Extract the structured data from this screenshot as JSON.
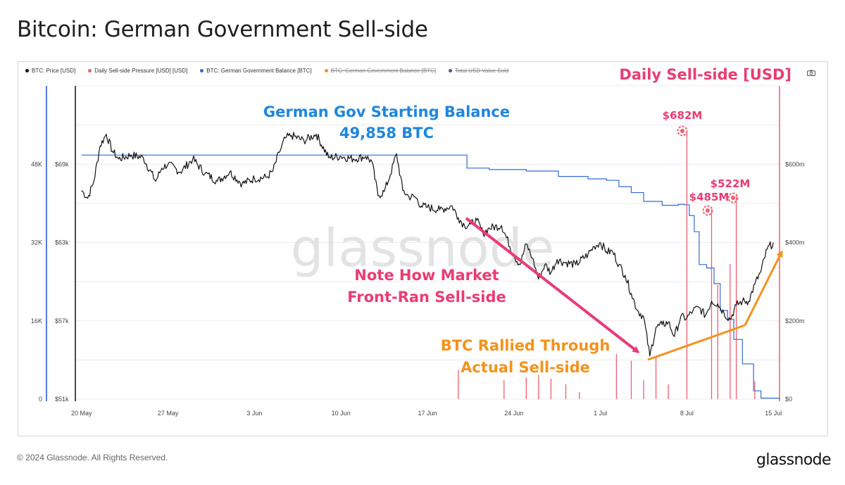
{
  "title": "Bitcoin: German Government Sell-side",
  "legend": [
    {
      "label": "BTC: Price [USD]",
      "color": "#111111",
      "active": true
    },
    {
      "label": "Daily Sell-side Pressure [USD] [USD]",
      "color": "#f45c6e",
      "active": true
    },
    {
      "label": "BTC: German Government Balance [BTC]",
      "color": "#2f6bdc",
      "active": true
    },
    {
      "label": "BTC: German Government Balance [BTC]",
      "color": "#f7931a",
      "active": false
    },
    {
      "label": "Total USD Value Sold",
      "color": "#4a5d8f",
      "active": false
    }
  ],
  "annotations": {
    "daily_sell_side": "Daily Sell-side [USD]",
    "starting_balance_line1": "German Gov Starting Balance",
    "starting_balance_line2": "49,858 BTC",
    "front_ran_line1": "Note How Market",
    "front_ran_line2": "Front-Ran Sell-side",
    "rallied_line1": "BTC Rallied Through",
    "rallied_line2": "Actual Sell-side",
    "peak_682": "$682M",
    "peak_485": "$485M",
    "peak_522": "$522M"
  },
  "watermark": "glassnode",
  "footer": "© 2024 Glassnode. All Rights Reserved.",
  "brand": "glassnode",
  "colors": {
    "price": "#111111",
    "balance": "#2f6bdc",
    "sellside": "#f45c6e",
    "pink": "#ea3c72",
    "blue": "#1d86e0",
    "orange": "#f5921b"
  },
  "chart_data": {
    "type": "line",
    "title": "Bitcoin: German Government Sell-side",
    "x_ticks": [
      "20 May",
      "27 May",
      "3 Jun",
      "10 Jun",
      "17 Jun",
      "24 Jun",
      "1 Jul",
      "8 Jul",
      "15 Jul"
    ],
    "x_range_days": [
      -0.5,
      56.5
    ],
    "axes": {
      "balance_btc": {
        "ticks": [
          "0",
          "16K",
          "32K",
          "48K"
        ],
        "range": [
          0,
          64000
        ]
      },
      "price_usd": {
        "ticks": [
          "$51k",
          "$57k",
          "$63k",
          "$69k"
        ],
        "range": [
          51000,
          75000
        ]
      },
      "sellside_usd": {
        "ticks": [
          "$0",
          "$200m",
          "$400m",
          "$600m"
        ],
        "range": [
          0,
          800
        ]
      }
    },
    "series": [
      {
        "name": "BTC: Price [USD]",
        "axis": "price_usd",
        "points": [
          [
            0.0,
            67000
          ],
          [
            0.5,
            66400
          ],
          [
            1.0,
            67700
          ],
          [
            1.5,
            70400
          ],
          [
            2.0,
            71300
          ],
          [
            2.5,
            70000
          ],
          [
            3.0,
            69400
          ],
          [
            4.0,
            69700
          ],
          [
            5.0,
            69500
          ],
          [
            6.0,
            67700
          ],
          [
            6.5,
            68700
          ],
          [
            7.0,
            69000
          ],
          [
            8.0,
            68400
          ],
          [
            9.0,
            69400
          ],
          [
            10.0,
            68300
          ],
          [
            11.0,
            67700
          ],
          [
            12.0,
            68400
          ],
          [
            13.0,
            67500
          ],
          [
            14.0,
            67900
          ],
          [
            15.0,
            68000
          ],
          [
            15.5,
            68500
          ],
          [
            16.0,
            69900
          ],
          [
            16.5,
            71000
          ],
          [
            17.0,
            71200
          ],
          [
            18.0,
            70800
          ],
          [
            19.0,
            71300
          ],
          [
            20.0,
            69500
          ],
          [
            21.0,
            69600
          ],
          [
            22.0,
            69400
          ],
          [
            23.0,
            69600
          ],
          [
            23.5,
            69200
          ],
          [
            24.0,
            66600
          ],
          [
            24.5,
            66900
          ],
          [
            25.0,
            68200
          ],
          [
            25.5,
            69800
          ],
          [
            26.0,
            67000
          ],
          [
            26.5,
            66500
          ],
          [
            27.0,
            66500
          ],
          [
            27.5,
            65800
          ],
          [
            28.0,
            65700
          ],
          [
            29.0,
            65500
          ],
          [
            30.0,
            65800
          ],
          [
            30.5,
            64900
          ],
          [
            31.0,
            64300
          ],
          [
            31.5,
            64400
          ],
          [
            32.0,
            64700
          ],
          [
            32.5,
            63700
          ],
          [
            33.0,
            64100
          ],
          [
            34.0,
            64300
          ],
          [
            35.0,
            62000
          ],
          [
            35.5,
            61300
          ],
          [
            36.0,
            62900
          ],
          [
            36.5,
            61800
          ],
          [
            37.0,
            60200
          ],
          [
            37.5,
            61300
          ],
          [
            38.0,
            60700
          ],
          [
            38.5,
            61700
          ],
          [
            39.0,
            61500
          ],
          [
            40.0,
            61300
          ],
          [
            41.0,
            62100
          ],
          [
            41.5,
            62700
          ],
          [
            42.0,
            63000
          ],
          [
            42.5,
            62300
          ],
          [
            43.0,
            62300
          ],
          [
            43.5,
            61300
          ],
          [
            44.0,
            60500
          ],
          [
            44.5,
            59100
          ],
          [
            45.0,
            57800
          ],
          [
            45.5,
            57300
          ],
          [
            46.0,
            54300
          ],
          [
            46.5,
            56500
          ],
          [
            47.0,
            56700
          ],
          [
            47.5,
            56900
          ],
          [
            48.0,
            55800
          ],
          [
            48.5,
            57300
          ],
          [
            49.0,
            57200
          ],
          [
            49.5,
            57800
          ],
          [
            50.0,
            58000
          ],
          [
            50.5,
            57400
          ],
          [
            51.0,
            58500
          ],
          [
            51.5,
            58300
          ],
          [
            52.0,
            57600
          ],
          [
            52.5,
            57100
          ],
          [
            53.0,
            58200
          ],
          [
            53.5,
            58500
          ],
          [
            54.0,
            58500
          ],
          [
            54.5,
            59800
          ],
          [
            55.0,
            60800
          ],
          [
            55.5,
            62500
          ],
          [
            56.0,
            63000
          ]
        ]
      },
      {
        "name": "BTC: German Government Balance [BTC]",
        "axis": "balance_btc",
        "points": [
          [
            0,
            49858
          ],
          [
            30.7,
            49858
          ],
          [
            31.2,
            47200
          ],
          [
            33,
            46900
          ],
          [
            36,
            46600
          ],
          [
            38.6,
            45500
          ],
          [
            41,
            45000
          ],
          [
            42.5,
            44700
          ],
          [
            43.5,
            43400
          ],
          [
            44.5,
            42200
          ],
          [
            45.5,
            40400
          ],
          [
            47,
            39600
          ],
          [
            48.3,
            39800
          ],
          [
            48.8,
            39700
          ],
          [
            49.2,
            37500
          ],
          [
            49.6,
            34200
          ],
          [
            50,
            27500
          ],
          [
            50.6,
            26800
          ],
          [
            51.2,
            23600
          ],
          [
            51.7,
            18100
          ],
          [
            52.3,
            16300
          ],
          [
            52.8,
            12200
          ],
          [
            53.5,
            7200
          ],
          [
            54.4,
            1700
          ],
          [
            55,
            200
          ],
          [
            56.5,
            0
          ]
        ]
      },
      {
        "name": "Daily Sell-side Pressure [USD] [USD]",
        "axis": "sellside_usd",
        "bars": [
          [
            30.5,
            75
          ],
          [
            34.2,
            48
          ],
          [
            36,
            55
          ],
          [
            37,
            62
          ],
          [
            38,
            52
          ],
          [
            39.2,
            38
          ],
          [
            40.3,
            18
          ],
          [
            43.3,
            115
          ],
          [
            44.5,
            98
          ],
          [
            45.5,
            48
          ],
          [
            46.5,
            108
          ],
          [
            47.5,
            38
          ],
          [
            49,
            682
          ],
          [
            51,
            485
          ],
          [
            51.5,
            292
          ],
          [
            52.5,
            345
          ],
          [
            53,
            522
          ],
          [
            54.5,
            45
          ]
        ]
      }
    ]
  }
}
